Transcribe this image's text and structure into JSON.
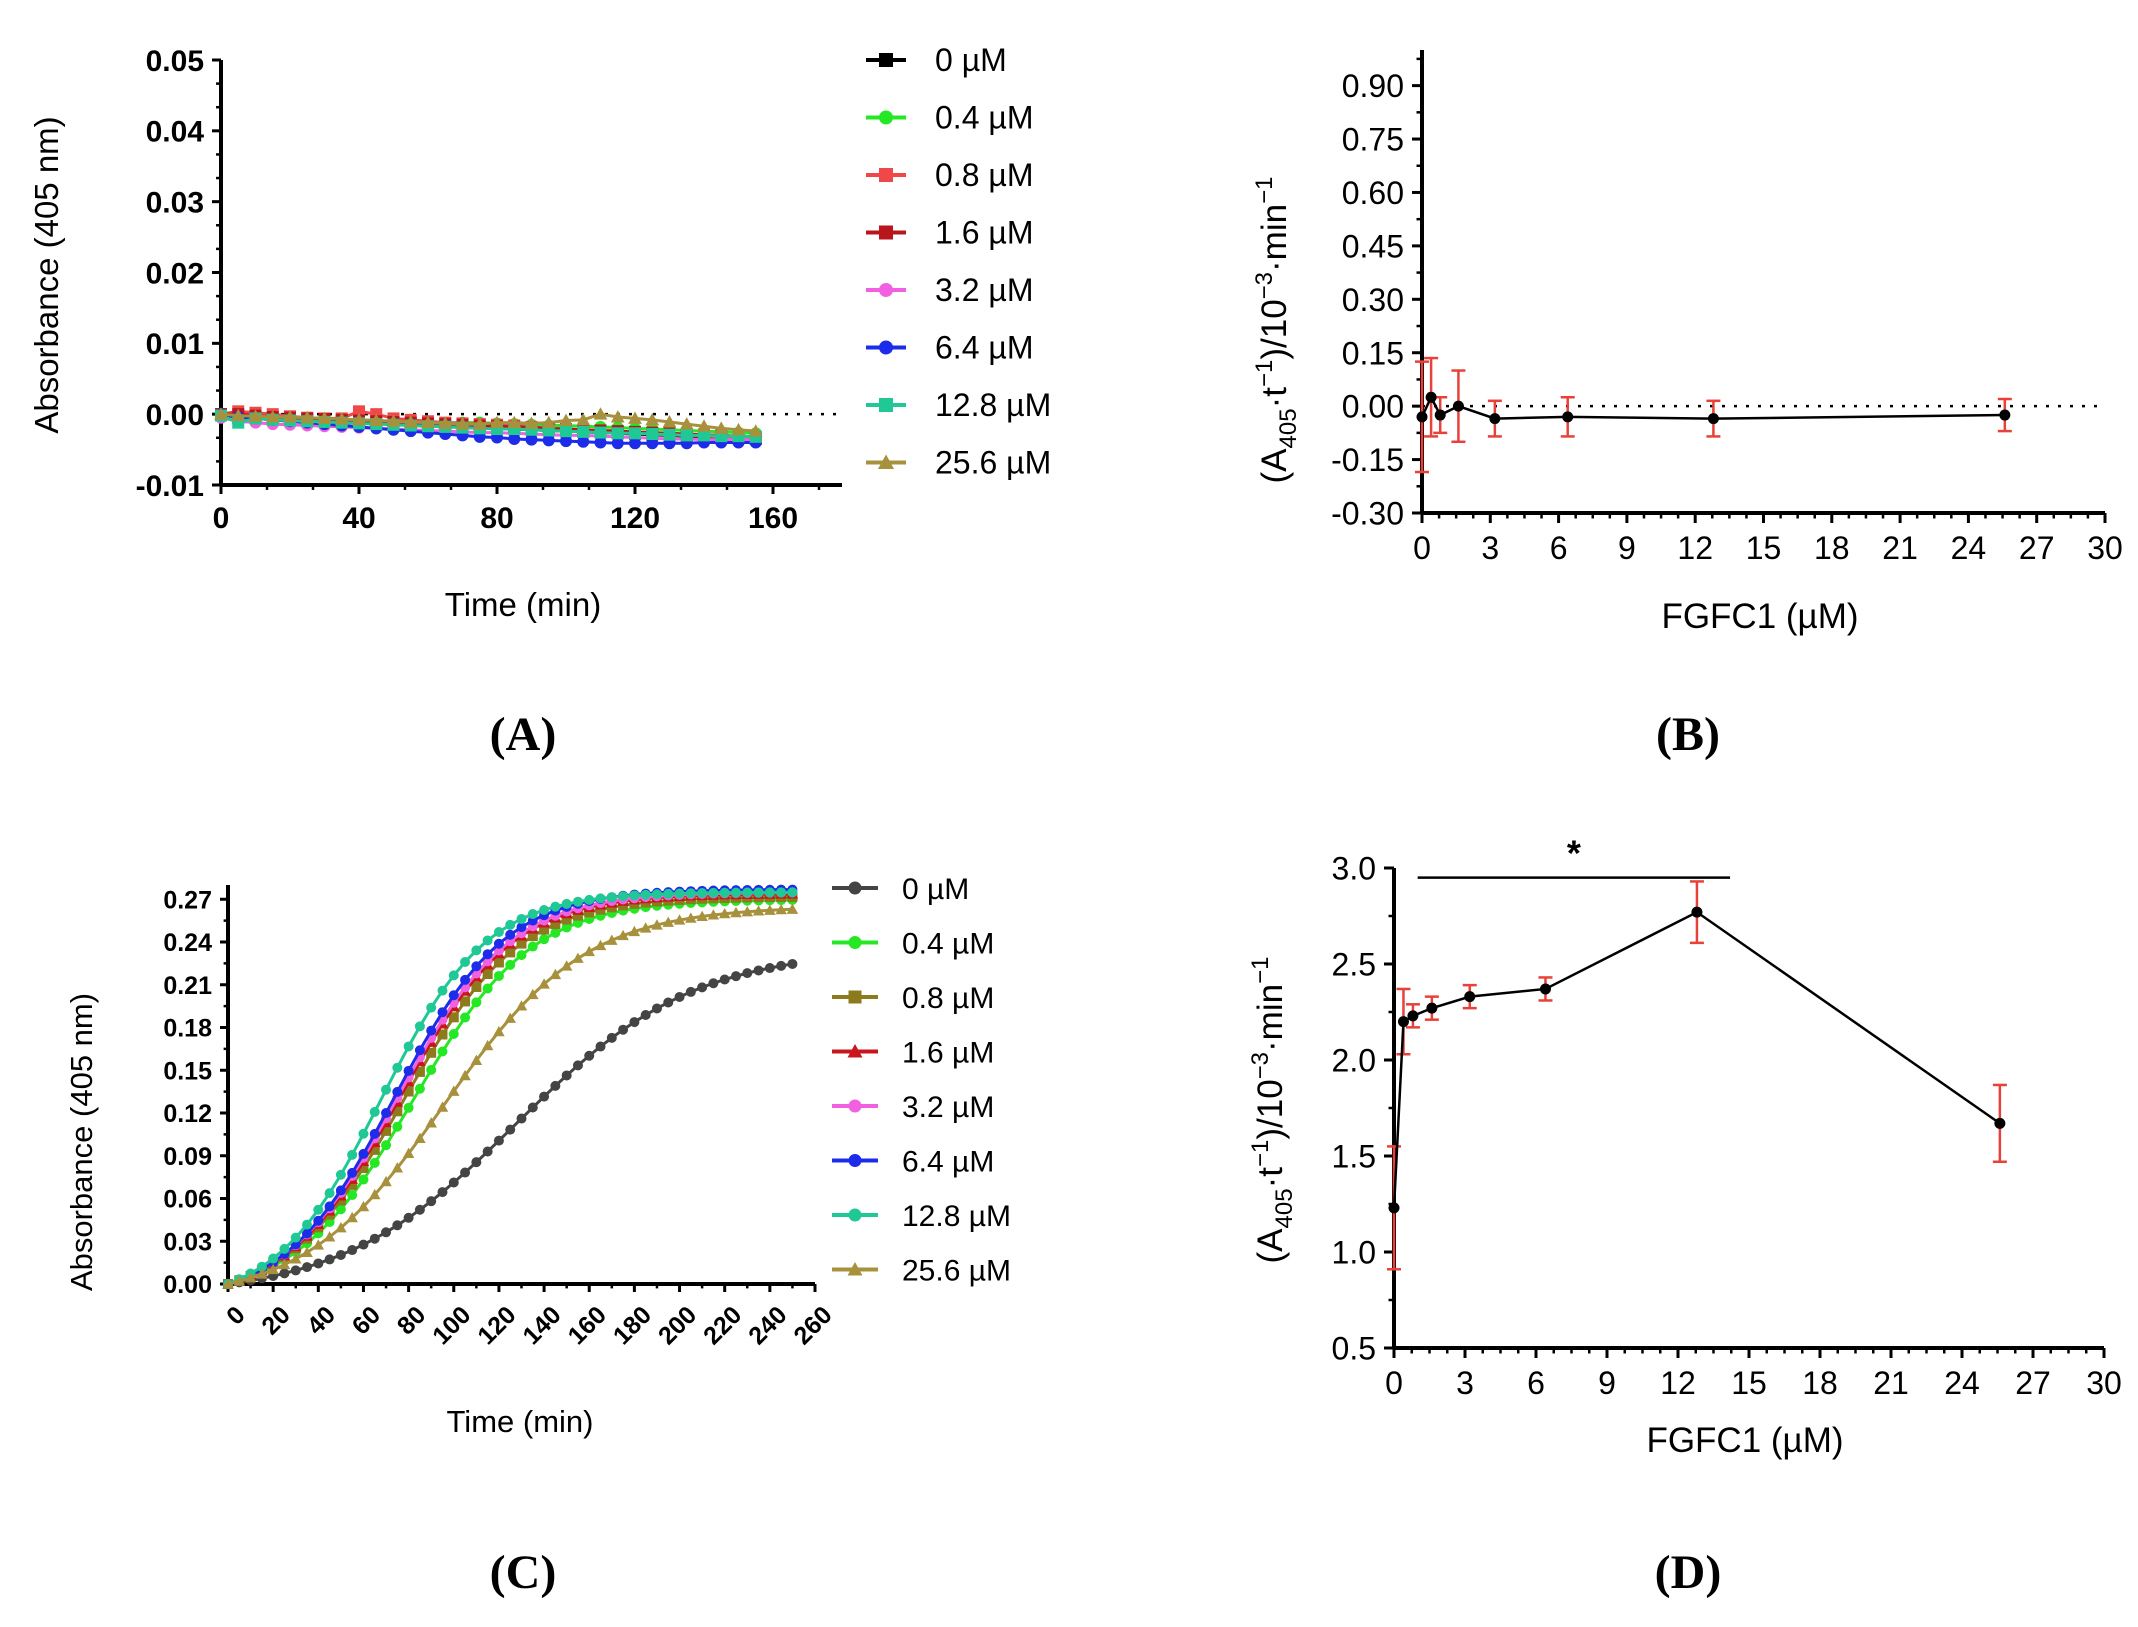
{
  "colors": {
    "axis": "#000000",
    "error_bar": "#e8413a",
    "reference_line": "#000000"
  },
  "chart_data": [
    {
      "panel": "A",
      "type": "line",
      "panel_label": "(A)",
      "xlabel": "Time (min)",
      "ylabel": "Absorbance (405 nm)",
      "xlim": [
        0,
        180
      ],
      "ylim": [
        -0.01,
        0.05
      ],
      "xticks": [
        0,
        40,
        80,
        120,
        160
      ],
      "xtick_labels": [
        "0",
        "40",
        "80",
        "120",
        "160"
      ],
      "yticks": [
        -0.01,
        0.0,
        0.01,
        0.02,
        0.03,
        0.04,
        0.05
      ],
      "ytick_labels": [
        "-0.01",
        "0.00",
        "0.01",
        "0.02",
        "0.03",
        "0.04",
        "0.05"
      ],
      "reference_line_y": 0,
      "legend_position": "right",
      "x": [
        0,
        5,
        10,
        15,
        20,
        25,
        30,
        35,
        40,
        45,
        50,
        55,
        60,
        65,
        70,
        75,
        80,
        85,
        90,
        95,
        100,
        105,
        110,
        115,
        120,
        125,
        130,
        135,
        140,
        145,
        150,
        155
      ],
      "series": [
        {
          "name": "0 µM",
          "color": "#000000",
          "marker": "square",
          "values": [
            0.0,
            -0.0005,
            -0.0005,
            -0.0006,
            -0.0007,
            -0.0008,
            -0.0009,
            -0.001,
            -0.0011,
            -0.0012,
            -0.0014,
            -0.0015,
            -0.0016,
            -0.0017,
            -0.0018,
            -0.0019,
            -0.002,
            -0.0021,
            -0.0022,
            -0.0023,
            -0.0024,
            -0.0025,
            -0.0026,
            -0.0027,
            -0.0028,
            -0.0029,
            -0.003,
            -0.0031,
            -0.0032,
            -0.0033,
            -0.0034,
            -0.0035
          ]
        },
        {
          "name": "0.4 µM",
          "color": "#25e825",
          "marker": "circle",
          "values": [
            0.0,
            -0.0004,
            -0.0006,
            -0.0008,
            -0.001,
            -0.001,
            -0.0008,
            -0.0007,
            -0.0008,
            -0.0009,
            -0.001,
            -0.0011,
            -0.0011,
            -0.0012,
            -0.0012,
            -0.0012,
            -0.0013,
            -0.0014,
            -0.0015,
            -0.0016,
            -0.0016,
            -0.0017,
            -0.0018,
            -0.0019,
            -0.002,
            -0.0021,
            -0.0022,
            -0.0023,
            -0.0024,
            -0.0025,
            -0.0026,
            -0.0027
          ]
        },
        {
          "name": "0.8 µM",
          "color": "#f04848",
          "marker": "square",
          "values": [
            0.0,
            0.0004,
            0.0002,
            0.0,
            -0.0003,
            -0.0005,
            -0.0006,
            -0.0006,
            0.0004,
            0.0,
            -0.0006,
            -0.0008,
            -0.001,
            -0.0012,
            -0.0013,
            -0.0014,
            -0.0015,
            -0.0016,
            -0.0018,
            -0.002,
            -0.0021,
            -0.0022,
            -0.0023,
            -0.0024,
            -0.0026,
            -0.0028,
            -0.0029,
            -0.003,
            -0.0031,
            -0.0032,
            -0.0033,
            -0.0034
          ]
        },
        {
          "name": "1.6 µM",
          "color": "#b8161c",
          "marker": "square",
          "values": [
            0.0,
            0.0,
            -0.0002,
            -0.0004,
            -0.0005,
            -0.0006,
            -0.0007,
            -0.0008,
            -0.0009,
            -0.001,
            -0.0011,
            -0.0012,
            -0.0013,
            -0.0014,
            -0.0015,
            -0.0016,
            -0.0017,
            -0.0018,
            -0.0019,
            -0.002,
            -0.0021,
            -0.0022,
            -0.0023,
            -0.0024,
            -0.0025,
            -0.0026,
            -0.0027,
            -0.0028,
            -0.0029,
            -0.003,
            -0.0031,
            -0.0032
          ]
        },
        {
          "name": "3.2 µM",
          "color": "#f060e0",
          "marker": "circle",
          "values": [
            -0.0005,
            -0.001,
            -0.0012,
            -0.0014,
            -0.0015,
            -0.0016,
            -0.0017,
            -0.0018,
            -0.0019,
            -0.002,
            -0.0021,
            -0.0022,
            -0.0023,
            -0.0024,
            -0.0025,
            -0.0026,
            -0.0026,
            -0.0027,
            -0.0028,
            -0.0029,
            -0.003,
            -0.003,
            -0.0031,
            -0.0032,
            -0.0033,
            -0.0034,
            -0.0035,
            -0.0035,
            -0.0036,
            -0.0036,
            -0.0036,
            -0.0036
          ]
        },
        {
          "name": "6.4 µM",
          "color": "#1c2ce8",
          "marker": "circle",
          "values": [
            0.0,
            -0.0004,
            -0.0006,
            -0.0008,
            -0.001,
            -0.0012,
            -0.0014,
            -0.0016,
            -0.0018,
            -0.002,
            -0.0022,
            -0.0024,
            -0.0026,
            -0.0028,
            -0.003,
            -0.0032,
            -0.0033,
            -0.0035,
            -0.0036,
            -0.0037,
            -0.0038,
            -0.0039,
            -0.004,
            -0.0041,
            -0.0041,
            -0.0041,
            -0.0041,
            -0.0041,
            -0.004,
            -0.004,
            -0.004,
            -0.004
          ]
        },
        {
          "name": "12.8 µM",
          "color": "#1fc895",
          "marker": "square",
          "values": [
            -0.0002,
            -0.0012,
            -0.0006,
            -0.0008,
            -0.0009,
            -0.001,
            -0.0011,
            -0.0012,
            -0.0013,
            -0.0014,
            -0.0015,
            -0.0016,
            -0.0017,
            -0.0018,
            -0.0019,
            -0.002,
            -0.0021,
            -0.0021,
            -0.0022,
            -0.0023,
            -0.0024,
            -0.0025,
            -0.0026,
            -0.0027,
            -0.0027,
            -0.0028,
            -0.0029,
            -0.003,
            -0.003,
            -0.0031,
            -0.0031,
            -0.0032
          ]
        },
        {
          "name": "25.6 µM",
          "color": "#a8913d",
          "marker": "triangle",
          "values": [
            0.0,
            -0.0002,
            -0.0003,
            -0.0004,
            -0.0004,
            -0.0005,
            -0.0006,
            -0.0007,
            -0.0008,
            -0.0009,
            -0.001,
            -0.0011,
            -0.0012,
            -0.0013,
            -0.0014,
            -0.0014,
            -0.0012,
            -0.0012,
            -0.0013,
            -0.0012,
            -0.0009,
            -0.0008,
            0.0,
            -0.0004,
            -0.0006,
            -0.0008,
            -0.0011,
            -0.0014,
            -0.0017,
            -0.002,
            -0.0022,
            -0.0024
          ]
        }
      ]
    },
    {
      "panel": "B",
      "type": "line",
      "panel_label": "(B)",
      "xlabel": "FGFC1 (µM)",
      "ylabel": "(A405·t−1)/10−3·min−1",
      "xlim": [
        0,
        30
      ],
      "ylim": [
        -0.3,
        1.0
      ],
      "xticks": [
        0,
        3,
        6,
        9,
        12,
        15,
        18,
        21,
        24,
        27,
        30
      ],
      "xtick_labels": [
        "0",
        "3",
        "6",
        "9",
        "12",
        "15",
        "18",
        "21",
        "24",
        "27",
        "30"
      ],
      "yticks": [
        -0.3,
        -0.15,
        0.0,
        0.15,
        0.3,
        0.45,
        0.6,
        0.75,
        0.9
      ],
      "ytick_labels": [
        "-0.30",
        "-0.15",
        "0.00",
        "0.15",
        "0.30",
        "0.45",
        "0.60",
        "0.75",
        "0.90"
      ],
      "reference_line_y": 0,
      "series": [
        {
          "name": "",
          "x": [
            0,
            0.4,
            0.8,
            1.6,
            3.2,
            6.4,
            12.8,
            25.6
          ],
          "values": [
            -0.03,
            0.025,
            -0.025,
            0.0,
            -0.035,
            -0.03,
            -0.035,
            -0.025
          ],
          "error": [
            0.155,
            0.11,
            0.05,
            0.1,
            0.05,
            0.055,
            0.05,
            0.045
          ]
        }
      ]
    },
    {
      "panel": "C",
      "type": "line",
      "panel_label": "(C)",
      "xlabel": "Time (min)",
      "ylabel": "Absorbance (405 nm)",
      "xlim": [
        0,
        260
      ],
      "ylim": [
        0,
        0.28
      ],
      "xticks": [
        0,
        20,
        40,
        60,
        80,
        100,
        120,
        140,
        160,
        180,
        200,
        220,
        240,
        260
      ],
      "xtick_labels": [
        "0",
        "20",
        "40",
        "60",
        "80",
        "100",
        "120",
        "140",
        "160",
        "180",
        "200",
        "220",
        "240",
        "260"
      ],
      "yticks": [
        0.0,
        0.03,
        0.06,
        0.09,
        0.12,
        0.15,
        0.18,
        0.21,
        0.24,
        0.27
      ],
      "ytick_labels": [
        "0.00",
        "0.03",
        "0.06",
        "0.09",
        "0.12",
        "0.15",
        "0.18",
        "0.21",
        "0.24",
        "0.27"
      ],
      "reference_line_y": 0,
      "legend_position": "right",
      "series": [
        {
          "name": "0 µM",
          "color": "#444444",
          "marker": "circle",
          "midpoint": 128,
          "steepness": 0.0255,
          "plateau": 0.235
        },
        {
          "name": "0.4 µM",
          "color": "#25e825",
          "marker": "circle",
          "midpoint": 82,
          "steepness": 0.038,
          "plateau": 0.27
        },
        {
          "name": "0.8 µM",
          "color": "#8c7a1c",
          "marker": "square",
          "midpoint": 78,
          "steepness": 0.039,
          "plateau": 0.272
        },
        {
          "name": "1.6 µM",
          "color": "#c8161c",
          "marker": "triangle",
          "midpoint": 76,
          "steepness": 0.04,
          "plateau": 0.274
        },
        {
          "name": "3.2 µM",
          "color": "#f060e0",
          "marker": "circle",
          "midpoint": 75,
          "steepness": 0.04,
          "plateau": 0.275
        },
        {
          "name": "6.4 µM",
          "color": "#1c2ce8",
          "marker": "circle",
          "midpoint": 74,
          "steepness": 0.041,
          "plateau": 0.277
        },
        {
          "name": "12.8 µM",
          "color": "#1fc895",
          "marker": "circle",
          "midpoint": 68,
          "steepness": 0.043,
          "plateau": 0.275
        },
        {
          "name": "25.6 µM",
          "color": "#a8913d",
          "marker": "triangle",
          "midpoint": 96,
          "steepness": 0.032,
          "plateau": 0.265
        }
      ]
    },
    {
      "panel": "D",
      "type": "line",
      "panel_label": "(D)",
      "xlabel": "FGFC1 (µM)",
      "ylabel": "(A405·t−1)/10−3·min−1",
      "xlim": [
        0,
        30
      ],
      "ylim": [
        0.5,
        3.0
      ],
      "xticks": [
        0,
        3,
        6,
        9,
        12,
        15,
        18,
        21,
        24,
        27,
        30
      ],
      "xtick_labels": [
        "0",
        "3",
        "6",
        "9",
        "12",
        "15",
        "18",
        "21",
        "24",
        "27",
        "30"
      ],
      "yticks": [
        0.5,
        1.0,
        1.5,
        2.0,
        2.5,
        3.0
      ],
      "ytick_labels": [
        "0.5",
        "1.0",
        "1.5",
        "2.0",
        "2.5",
        "3.0"
      ],
      "significance": {
        "label": "*",
        "x_from": 1.0,
        "x_to": 14.2,
        "y": 2.95
      },
      "series": [
        {
          "name": "",
          "x": [
            0,
            0.4,
            0.8,
            1.6,
            3.2,
            6.4,
            12.8,
            25.6
          ],
          "values": [
            1.23,
            2.2,
            2.23,
            2.27,
            2.33,
            2.37,
            2.77,
            1.67
          ],
          "error": [
            0.32,
            0.17,
            0.06,
            0.06,
            0.06,
            0.06,
            0.16,
            0.2
          ]
        }
      ]
    }
  ]
}
